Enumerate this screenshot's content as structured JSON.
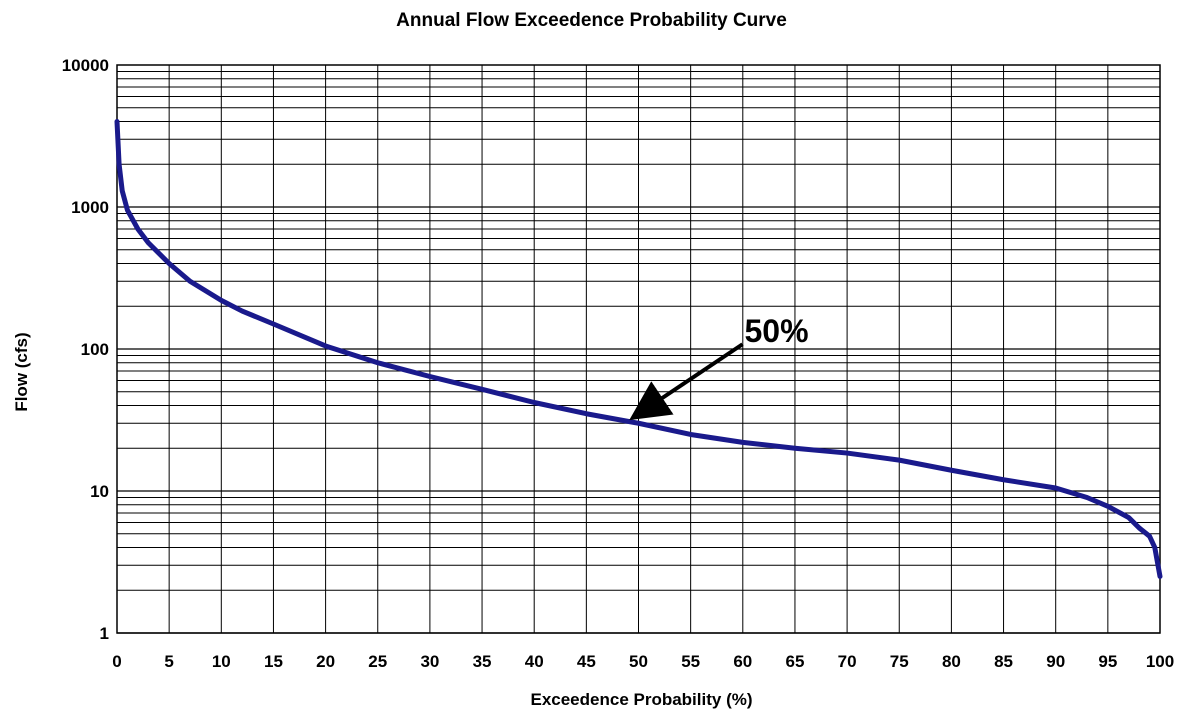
{
  "chart_data": {
    "type": "line",
    "title": "Annual Flow Exceedence Probability Curve",
    "xlabel": "Exceedence Probability  (%)",
    "ylabel": "Flow  (cfs)",
    "xlim": [
      0,
      100
    ],
    "ylim": [
      1,
      10000
    ],
    "y_scale": "log",
    "grid": true,
    "x_ticks": [
      0,
      5,
      10,
      15,
      20,
      25,
      30,
      35,
      40,
      45,
      50,
      55,
      60,
      65,
      70,
      75,
      80,
      85,
      90,
      95,
      100
    ],
    "y_ticks": [
      1,
      10,
      100,
      1000,
      10000
    ],
    "line_color": "#1a1a8c",
    "series": [
      {
        "x": [
          0,
          0.2,
          0.5,
          1,
          2,
          3,
          5,
          7,
          10,
          12,
          15,
          20,
          25,
          30,
          35,
          40,
          45,
          50,
          55,
          60,
          65,
          70,
          75,
          80,
          85,
          90,
          93,
          95,
          97,
          98,
          99,
          99.5,
          100
        ],
        "y": [
          4000,
          2000,
          1300,
          950,
          700,
          560,
          400,
          300,
          220,
          185,
          150,
          105,
          80,
          64,
          52,
          42,
          35,
          30,
          25,
          22,
          20,
          18.5,
          16.5,
          14,
          12,
          10.5,
          9,
          7.8,
          6.5,
          5.5,
          4.8,
          4,
          2.5
        ]
      }
    ],
    "annotations": [
      {
        "text": "50%",
        "points_to": {
          "x": 50,
          "y": 30
        }
      }
    ]
  }
}
